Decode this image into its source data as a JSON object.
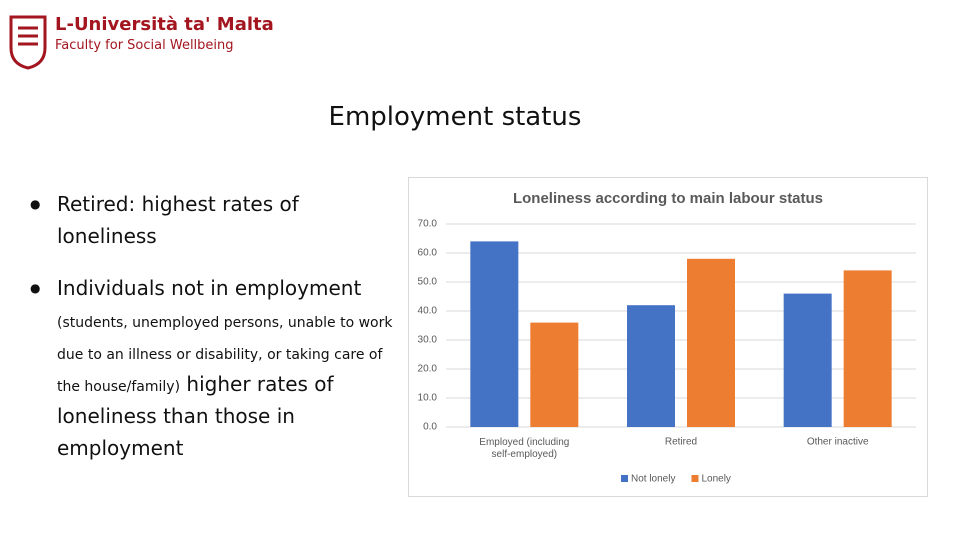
{
  "header": {
    "university": "L-Università ta' Malta",
    "faculty": "Faculty for Social Wellbeing"
  },
  "title": "Employment status",
  "bullets": [
    {
      "parts": [
        "Retired: highest rates of loneliness"
      ]
    },
    {
      "parts": [
        "Individuals not in employment",
        "(students, unemployed persons, unable to work due to an illness or disability, or taking care of the house/family)",
        "higher rates of loneliness than those in employment"
      ]
    }
  ],
  "chart_data": {
    "type": "bar",
    "title": "Loneliness according to main labour status",
    "categories": [
      "Employed (including self-employed)",
      "Retired",
      "Other inactive"
    ],
    "series": [
      {
        "name": "Not lonely",
        "color": "#4472c4",
        "values": [
          64,
          42,
          46
        ]
      },
      {
        "name": "Lonely",
        "color": "#ed7d31",
        "values": [
          36,
          58,
          54
        ]
      }
    ],
    "ylim": [
      0,
      70
    ],
    "yticks": [
      {
        "value": 0,
        "label": "0.0"
      },
      {
        "value": 10,
        "label": "10.0"
      },
      {
        "value": 20,
        "label": "20.0"
      },
      {
        "value": 30,
        "label": "30.0"
      },
      {
        "value": 40,
        "label": "40.0"
      },
      {
        "value": 50,
        "label": "50.0"
      },
      {
        "value": 60,
        "label": "60.0"
      },
      {
        "value": 70,
        "label": "70.0"
      }
    ],
    "grid": true,
    "legend": "bottom"
  }
}
